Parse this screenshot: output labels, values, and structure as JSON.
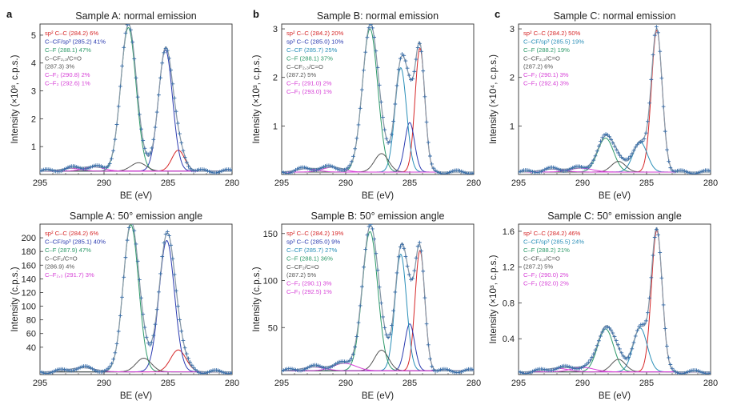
{
  "panel_letters": [
    "a",
    "b",
    "c"
  ],
  "colors": {
    "sp2": "#d62728",
    "cf_sp3": "#2b3bb0",
    "cf_sp3_c": "#2a8fb8",
    "cf": "#2e9a6a",
    "cf2": "#555555",
    "f": "#d63fd6",
    "envelope": "#8a9aa8",
    "data": "#3a6ea8"
  },
  "chart_data": [
    {
      "id": "A-normal",
      "type": "line",
      "panel_letter": "a",
      "title": "Sample A: normal emission",
      "xlabel": "BE (eV)",
      "ylabel": "Intensity (×10³, c.p.s.)",
      "xlim": [
        295,
        280
      ],
      "ylim": [
        0,
        5.4
      ],
      "xticks": [
        295,
        290,
        285,
        280
      ],
      "yticks": [
        1,
        2,
        3,
        4,
        5
      ],
      "baseline": 0.12,
      "components": [
        {
          "name": "sp² C–C",
          "center": 284.2,
          "percent": 6,
          "height": 0.75,
          "width": 0.5,
          "color": "#d62728",
          "label_parts": [
            "sp² C–C",
            " (284.2) 6%"
          ]
        },
        {
          "name": "C–CF/sp³",
          "center": 285.2,
          "percent": 41,
          "height": 4.35,
          "width": 0.55,
          "color": "#2b3bb0",
          "label_parts": [
            "C–CF/sp³",
            " (285.2) 41%"
          ]
        },
        {
          "name": "C–F",
          "center": 288.1,
          "percent": 47,
          "height": 5.15,
          "width": 0.6,
          "color": "#2e9a6a",
          "label_parts": [
            "C–F",
            " (288.1) 47%"
          ]
        },
        {
          "name": "C–CF2,3/C=O",
          "center": 287.3,
          "percent": 3,
          "height": 0.3,
          "width": 0.6,
          "color": "#555555",
          "label_parts": [
            "C–CF₂,₃/C=O",
            "(287.3) 3%"
          ]
        },
        {
          "name": "C–F2",
          "center": 290.8,
          "percent": 2,
          "height": 0.15,
          "width": 0.8,
          "color": "#d63fd6",
          "label_parts": [
            "C–F₂",
            " (290.8) 2%"
          ]
        },
        {
          "name": "C–F3",
          "center": 292.6,
          "percent": 1,
          "height": 0.1,
          "width": 0.8,
          "color": "#d63fd6",
          "label_parts": [
            "C–F₃",
            " (292.6) 1%"
          ]
        }
      ]
    },
    {
      "id": "B-normal",
      "type": "line",
      "panel_letter": "b",
      "title": "Sample B: normal emission",
      "xlabel": "BE (eV)",
      "ylabel": "Intensity (×10³, c.p.s.)",
      "xlim": [
        295,
        280
      ],
      "ylim": [
        0,
        3.1
      ],
      "xticks": [
        295,
        290,
        285,
        280
      ],
      "yticks": [
        1,
        2,
        3
      ],
      "baseline": 0.05,
      "components": [
        {
          "name": "sp² C–C",
          "center": 284.2,
          "percent": 20,
          "height": 2.55,
          "width": 0.38,
          "color": "#d62728",
          "label_parts": [
            "sp² C–C",
            " (284.2) 20%"
          ]
        },
        {
          "name": "sp³ C–C",
          "center": 285.0,
          "percent": 10,
          "height": 1.02,
          "width": 0.38,
          "color": "#2b3bb0",
          "label_parts": [
            "sp³ C–C",
            " (285.0) 10%"
          ]
        },
        {
          "name": "C–CF",
          "center": 285.7,
          "percent": 25,
          "height": 2.15,
          "width": 0.45,
          "color": "#2a8fb8",
          "label_parts": [
            "C–CF",
            " (285.7) 25%"
          ]
        },
        {
          "name": "C–F",
          "center": 288.1,
          "percent": 37,
          "height": 2.95,
          "width": 0.6,
          "color": "#2e9a6a",
          "label_parts": [
            "C–F",
            " (288.1) 37%"
          ]
        },
        {
          "name": "C–CF2,3/C=O",
          "center": 287.2,
          "percent": 5,
          "height": 0.38,
          "width": 0.55,
          "color": "#555555",
          "label_parts": [
            "C–CF₂,₃/C=O",
            "(287.2) 5%"
          ]
        },
        {
          "name": "C–F2",
          "center": 291.0,
          "percent": 2,
          "height": 0.1,
          "width": 0.8,
          "color": "#d63fd6",
          "label_parts": [
            "C–F₂",
            " (291.0) 2%"
          ]
        },
        {
          "name": "C–F3",
          "center": 293.0,
          "percent": 1,
          "height": 0.07,
          "width": 0.8,
          "color": "#d63fd6",
          "label_parts": [
            "C–F₃",
            " (293.0) 1%"
          ]
        }
      ]
    },
    {
      "id": "C-normal",
      "type": "line",
      "panel_letter": "c",
      "title": "Sample C: normal emission",
      "xlabel": "BE (eV)",
      "ylabel": "Intensity (×10⁴, c.p.s.)",
      "xlim": [
        295,
        280
      ],
      "ylim": [
        0,
        3.1
      ],
      "xticks": [
        295,
        290,
        285,
        280
      ],
      "yticks": [
        1,
        2,
        3
      ],
      "baseline": 0.05,
      "components": [
        {
          "name": "sp² C–C",
          "center": 284.2,
          "percent": 50,
          "height": 2.92,
          "width": 0.42,
          "color": "#d62728",
          "label_parts": [
            "sp² C–C",
            " (284.2) 50%"
          ]
        },
        {
          "name": "C–CF/sp³",
          "center": 285.5,
          "percent": 19,
          "height": 0.62,
          "width": 0.55,
          "color": "#2a8fb8",
          "label_parts": [
            "C–CF/sp³",
            " (285.5) 19%"
          ]
        },
        {
          "name": "C–F",
          "center": 288.2,
          "percent": 19,
          "height": 0.7,
          "width": 0.62,
          "color": "#2e9a6a",
          "label_parts": [
            "C–F",
            " (288.2) 19%"
          ]
        },
        {
          "name": "C–CF2,3/C=O",
          "center": 287.2,
          "percent": 6,
          "height": 0.22,
          "width": 0.55,
          "color": "#555555",
          "label_parts": [
            "C–CF₂,₃/C=O",
            "(287.2) 6%"
          ]
        },
        {
          "name": "C–F2",
          "center": 290.1,
          "percent": 3,
          "height": 0.08,
          "width": 0.9,
          "color": "#d63fd6",
          "label_parts": [
            "C–F₂",
            " (290.1) 3%"
          ]
        },
        {
          "name": "C–F3",
          "center": 292.4,
          "percent": 3,
          "height": 0.06,
          "width": 0.9,
          "color": "#d63fd6",
          "label_parts": [
            "C–F₃",
            " (292.4) 3%"
          ]
        }
      ]
    },
    {
      "id": "A-50",
      "type": "line",
      "panel_letter": "",
      "title": "Sample A: 50° emission angle",
      "xlabel": "BE (eV)",
      "ylabel": "Intensity (c.p.s.)",
      "xlim": [
        295,
        280
      ],
      "ylim": [
        0,
        220
      ],
      "xticks": [
        295,
        290,
        285,
        280
      ],
      "yticks": [
        40,
        60,
        80,
        100,
        120,
        140,
        160,
        180,
        200
      ],
      "baseline": 4,
      "components": [
        {
          "name": "sp² C–C",
          "center": 284.2,
          "percent": 6,
          "height": 32,
          "width": 0.6,
          "color": "#d62728",
          "label_parts": [
            "sp² C–C",
            " (284.2) 6%"
          ]
        },
        {
          "name": "C–CF/sp³",
          "center": 285.1,
          "percent": 40,
          "height": 192,
          "width": 0.6,
          "color": "#2b3bb0",
          "label_parts": [
            "C–CF/sp³",
            " (285.1) 40%"
          ]
        },
        {
          "name": "C–F",
          "center": 287.9,
          "percent": 47,
          "height": 215,
          "width": 0.6,
          "color": "#2e9a6a",
          "label_parts": [
            "C–F",
            " (287.9) 47%"
          ]
        },
        {
          "name": "C–CF2/C=O",
          "center": 286.9,
          "percent": 4,
          "height": 20,
          "width": 0.6,
          "color": "#555555",
          "label_parts": [
            "C–CF₂/C=O",
            "(286.9) 4%"
          ]
        },
        {
          "name": "C–F2,3",
          "center": 291.7,
          "percent": 3,
          "height": 6,
          "width": 1.0,
          "color": "#d63fd6",
          "label_parts": [
            "C–F₂,₃",
            " (291.7) 3%"
          ]
        }
      ]
    },
    {
      "id": "B-50",
      "type": "line",
      "panel_letter": "",
      "title": "Sample B: 50° emission angle",
      "xlabel": "BE (eV)",
      "ylabel": "Intensity (c.p.s.)",
      "xlim": [
        295,
        280
      ],
      "ylim": [
        0,
        160
      ],
      "xticks": [
        295,
        290,
        285,
        280
      ],
      "yticks": [
        50,
        100,
        150
      ],
      "baseline": 4,
      "components": [
        {
          "name": "sp² C–C",
          "center": 284.2,
          "percent": 19,
          "height": 128,
          "width": 0.38,
          "color": "#d62728",
          "label_parts": [
            "sp² C–C",
            " (284.2) 19%"
          ]
        },
        {
          "name": "sp³ C–C",
          "center": 285.0,
          "percent": 9,
          "height": 50,
          "width": 0.38,
          "color": "#2b3bb0",
          "label_parts": [
            "sp³ C–C",
            " (285.0) 9%"
          ]
        },
        {
          "name": "C–CF",
          "center": 285.7,
          "percent": 27,
          "height": 124,
          "width": 0.45,
          "color": "#2a8fb8",
          "label_parts": [
            "C–CF",
            " (285.7) 27%"
          ]
        },
        {
          "name": "C–F",
          "center": 288.1,
          "percent": 36,
          "height": 148,
          "width": 0.6,
          "color": "#2e9a6a",
          "label_parts": [
            "C–F",
            " (288.1) 36%"
          ]
        },
        {
          "name": "C–CF2/C=O",
          "center": 287.2,
          "percent": 5,
          "height": 22,
          "width": 0.55,
          "color": "#555555",
          "label_parts": [
            "C–CF₂/C=O",
            "(287.2) 5%"
          ]
        },
        {
          "name": "C–F2",
          "center": 290.1,
          "percent": 3,
          "height": 8,
          "width": 0.9,
          "color": "#d63fd6",
          "label_parts": [
            "C–F₂",
            " (290.1) 3%"
          ]
        },
        {
          "name": "C–F3",
          "center": 292.5,
          "percent": 1,
          "height": 4,
          "width": 0.9,
          "color": "#d63fd6",
          "label_parts": [
            "C–F₃",
            " (292.5) 1%"
          ]
        }
      ]
    },
    {
      "id": "C-50",
      "type": "line",
      "panel_letter": "",
      "title": "Sample C: 50° emission angle",
      "xlabel": "BE (eV)",
      "ylabel": "Intensity (×10³, c.p.s.)",
      "xlim": [
        295,
        280
      ],
      "ylim": [
        0,
        1.68
      ],
      "xticks": [
        295,
        290,
        285,
        280
      ],
      "yticks": [
        0.4,
        0.8,
        1.2,
        1.6
      ],
      "baseline": 0.03,
      "components": [
        {
          "name": "sp² C–C",
          "center": 284.2,
          "percent": 46,
          "height": 1.58,
          "width": 0.42,
          "color": "#d62728",
          "label_parts": [
            "sp² C–C",
            " (284.2) 46%"
          ]
        },
        {
          "name": "C–CF/sp³",
          "center": 285.5,
          "percent": 24,
          "height": 0.49,
          "width": 0.55,
          "color": "#2a8fb8",
          "label_parts": [
            "C–CF/sp³",
            " (285.5) 24%"
          ]
        },
        {
          "name": "C–F",
          "center": 288.2,
          "percent": 21,
          "height": 0.48,
          "width": 0.62,
          "color": "#2e9a6a",
          "label_parts": [
            "C–F",
            " (288.2) 21%"
          ]
        },
        {
          "name": "C–CF2,3/C=O",
          "center": 287.2,
          "percent": 5,
          "height": 0.14,
          "width": 0.55,
          "color": "#555555",
          "label_parts": [
            "C–CF₂,₃/C=O",
            "(287.2) 5%"
          ]
        },
        {
          "name": "C–F2",
          "center": 290.0,
          "percent": 2,
          "height": 0.05,
          "width": 0.9,
          "color": "#d63fd6",
          "label_parts": [
            "C–F₂",
            " (290.0) 2%"
          ]
        },
        {
          "name": "C–F3",
          "center": 292.0,
          "percent": 2,
          "height": 0.04,
          "width": 0.9,
          "color": "#d63fd6",
          "label_parts": [
            "C–F₃",
            " (292.0) 2%"
          ]
        }
      ]
    }
  ]
}
